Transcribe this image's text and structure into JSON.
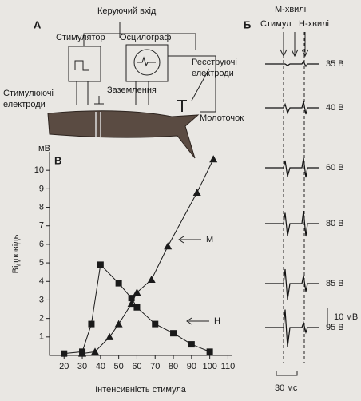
{
  "panel_a": {
    "label": "А",
    "control_input": "Керуючий вхід",
    "stimulator": "Стимулятор",
    "oscillograph": "Осцилограф",
    "recording_electrodes": [
      "Реєструючі",
      "електроди"
    ],
    "stimulating_electrodes": [
      "Стимулюючі",
      "електроди"
    ],
    "ground": "Заземлення",
    "hammer": "Молоточок"
  },
  "panel_b": {
    "label": "Б",
    "stimulus": "Стимул",
    "m_waves": "М-хвилі",
    "h_waves": "Н-хвилі",
    "traces": [
      "35 В",
      "40 В",
      "60 В",
      "80 В",
      "85 В",
      "95 В"
    ],
    "amplitude_scale": "10 мВ",
    "time_scale": "30 мс"
  },
  "chart_data": {
    "type": "line",
    "panel_label": "В",
    "y_unit": "мВ",
    "x_label": "Інтенсивність стимула",
    "y_label": "Відповідь",
    "xlim": [
      12,
      112
    ],
    "xticks": [
      20,
      30,
      40,
      50,
      60,
      70,
      80,
      90,
      100,
      110
    ],
    "ylim": [
      0,
      11
    ],
    "yticks": [
      1,
      2,
      3,
      4,
      5,
      6,
      7,
      8,
      9,
      10
    ],
    "series": [
      {
        "name": "М",
        "marker": "triangle",
        "color": "#1a1a1a",
        "x": [
          30,
          37,
          45,
          50,
          57,
          60,
          68,
          77,
          93,
          102
        ],
        "values": [
          0.1,
          0.2,
          1.0,
          1.7,
          2.8,
          3.4,
          4.1,
          5.9,
          8.8,
          10.6
        ]
      },
      {
        "name": "Н",
        "marker": "square",
        "color": "#1a1a1a",
        "x": [
          20,
          30,
          35,
          40,
          50,
          57,
          60,
          70,
          80,
          90,
          100
        ],
        "values": [
          0.1,
          0.2,
          1.7,
          4.9,
          3.9,
          3.1,
          2.6,
          1.7,
          1.2,
          0.6,
          0.2
        ]
      }
    ]
  }
}
